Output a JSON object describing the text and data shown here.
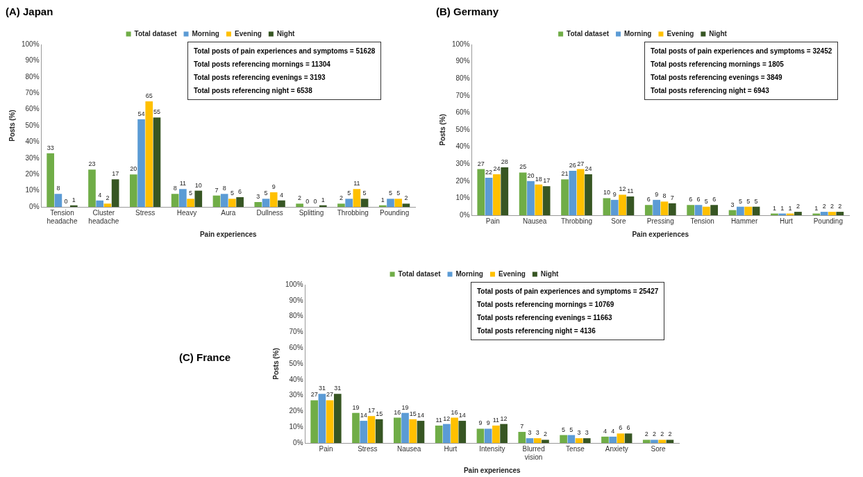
{
  "chart_data": [
    {
      "type": "bar",
      "title": "(A) Japan",
      "xlabel": "Pain experiences",
      "ylabel": "Posts (%)",
      "categories": [
        "Tension headache",
        "Cluster headache",
        "Stress",
        "Heavy",
        "Aura",
        "Dullness",
        "Splitting",
        "Throbbing",
        "Pounding"
      ],
      "series": [
        {
          "name": "Total dataset",
          "color": "#70ad47",
          "values": [
            33,
            23,
            20,
            8,
            7,
            3,
            2,
            2,
            1
          ]
        },
        {
          "name": "Morning",
          "color": "#5b9bd5",
          "values": [
            8,
            4,
            54,
            11,
            8,
            5,
            0,
            5,
            5
          ]
        },
        {
          "name": "Evening",
          "color": "#ffc000",
          "values": [
            0,
            2,
            65,
            5,
            5,
            9,
            0,
            11,
            5
          ]
        },
        {
          "name": "Night",
          "color": "#375623",
          "values": [
            1,
            17,
            55,
            10,
            6,
            4,
            1,
            5,
            2
          ]
        }
      ],
      "ylim": [
        0,
        100
      ],
      "yticks": [
        {
          "value": 0,
          "label": "0%"
        },
        {
          "value": 10,
          "label": "10%"
        },
        {
          "value": 20,
          "label": "20%"
        },
        {
          "value": 30,
          "label": "30%"
        },
        {
          "value": 40,
          "label": "40%"
        },
        {
          "value": 50,
          "label": "50%"
        },
        {
          "value": 60,
          "label": "60%"
        },
        {
          "value": 70,
          "label": "70%"
        },
        {
          "value": 80,
          "label": "80%"
        },
        {
          "value": 90,
          "label": "90%"
        },
        {
          "value": 100,
          "label": "100%"
        }
      ],
      "grid": false,
      "legend": "top",
      "data_labels": true,
      "annotations": [
        "Total posts of pain experiences and symptoms = 51628",
        "Total posts referencing mornings = 11304",
        "Total posts referencing evenings = 3193",
        "Total posts referencing night = 6538"
      ]
    },
    {
      "type": "bar",
      "title": "(B) Germany",
      "xlabel": "Pain experiences",
      "ylabel": "Posts (%)",
      "categories": [
        "Pain",
        "Nausea",
        "Throbbing",
        "Sore",
        "Pressing",
        "Tension",
        "Hammer",
        "Hurt",
        "Pounding"
      ],
      "series": [
        {
          "name": "Total dataset",
          "color": "#70ad47",
          "values": [
            27,
            25,
            21,
            10,
            6,
            6,
            3,
            1,
            1
          ]
        },
        {
          "name": "Morning",
          "color": "#5b9bd5",
          "values": [
            22,
            20,
            26,
            9,
            9,
            6,
            5,
            1,
            2
          ]
        },
        {
          "name": "Evening",
          "color": "#ffc000",
          "values": [
            24,
            18,
            27,
            12,
            8,
            5,
            5,
            1,
            2
          ]
        },
        {
          "name": "Night",
          "color": "#375623",
          "values": [
            28,
            17,
            24,
            11,
            7,
            6,
            5,
            2,
            2
          ]
        }
      ],
      "ylim": [
        0,
        100
      ],
      "yticks": [
        {
          "value": 0,
          "label": "0%"
        },
        {
          "value": 10,
          "label": "10%"
        },
        {
          "value": 20,
          "label": "20%"
        },
        {
          "value": 30,
          "label": "30%"
        },
        {
          "value": 40,
          "label": "40%"
        },
        {
          "value": 50,
          "label": "50%"
        },
        {
          "value": 60,
          "label": "60%"
        },
        {
          "value": 70,
          "label": "70%"
        },
        {
          "value": 80,
          "label": "80%"
        },
        {
          "value": 90,
          "label": "90%"
        },
        {
          "value": 100,
          "label": "100%"
        }
      ],
      "grid": false,
      "legend": "top",
      "data_labels": true,
      "annotations": [
        "Total posts of pain experiences and symptoms = 32452",
        "Total posts referencing mornings = 1805",
        "Total posts referencing evenings = 3849",
        "Total posts referencing night = 6943"
      ]
    },
    {
      "type": "bar",
      "title": "(C) France",
      "xlabel": "Pain experiences",
      "ylabel": "Posts (%)",
      "categories": [
        "Pain",
        "Stress",
        "Nausea",
        "Hurt",
        "Intensity",
        "Blurred vision",
        "Tense",
        "Anxiety",
        "Sore"
      ],
      "series": [
        {
          "name": "Total dataset",
          "color": "#70ad47",
          "values": [
            27,
            19,
            16,
            11,
            9,
            7,
            5,
            4,
            2
          ]
        },
        {
          "name": "Morning",
          "color": "#5b9bd5",
          "values": [
            31,
            14,
            19,
            12,
            9,
            3,
            5,
            4,
            2
          ]
        },
        {
          "name": "Evening",
          "color": "#ffc000",
          "values": [
            27,
            17,
            15,
            16,
            11,
            3,
            3,
            6,
            2
          ]
        },
        {
          "name": "Night",
          "color": "#375623",
          "values": [
            31,
            15,
            14,
            14,
            12,
            2,
            3,
            6,
            2
          ]
        }
      ],
      "ylim": [
        0,
        100
      ],
      "yticks": [
        {
          "value": 0,
          "label": "0%"
        },
        {
          "value": 10,
          "label": "10%"
        },
        {
          "value": 20,
          "label": "20%"
        },
        {
          "value": 30,
          "label": "30%"
        },
        {
          "value": 40,
          "label": "40%"
        },
        {
          "value": 50,
          "label": "50%"
        },
        {
          "value": 60,
          "label": "60%"
        },
        {
          "value": 70,
          "label": "70%"
        },
        {
          "value": 80,
          "label": "80%"
        },
        {
          "value": 90,
          "label": "90%"
        },
        {
          "value": 100,
          "label": "100%"
        }
      ],
      "grid": false,
      "legend": "top",
      "data_labels": true,
      "annotations": [
        "Total posts of pain experiences and symptoms = 25427",
        "Total posts referencing mornings = 10769",
        "Total posts referencing evenings = 11663",
        "Total posts referencing night = 4136"
      ]
    }
  ]
}
